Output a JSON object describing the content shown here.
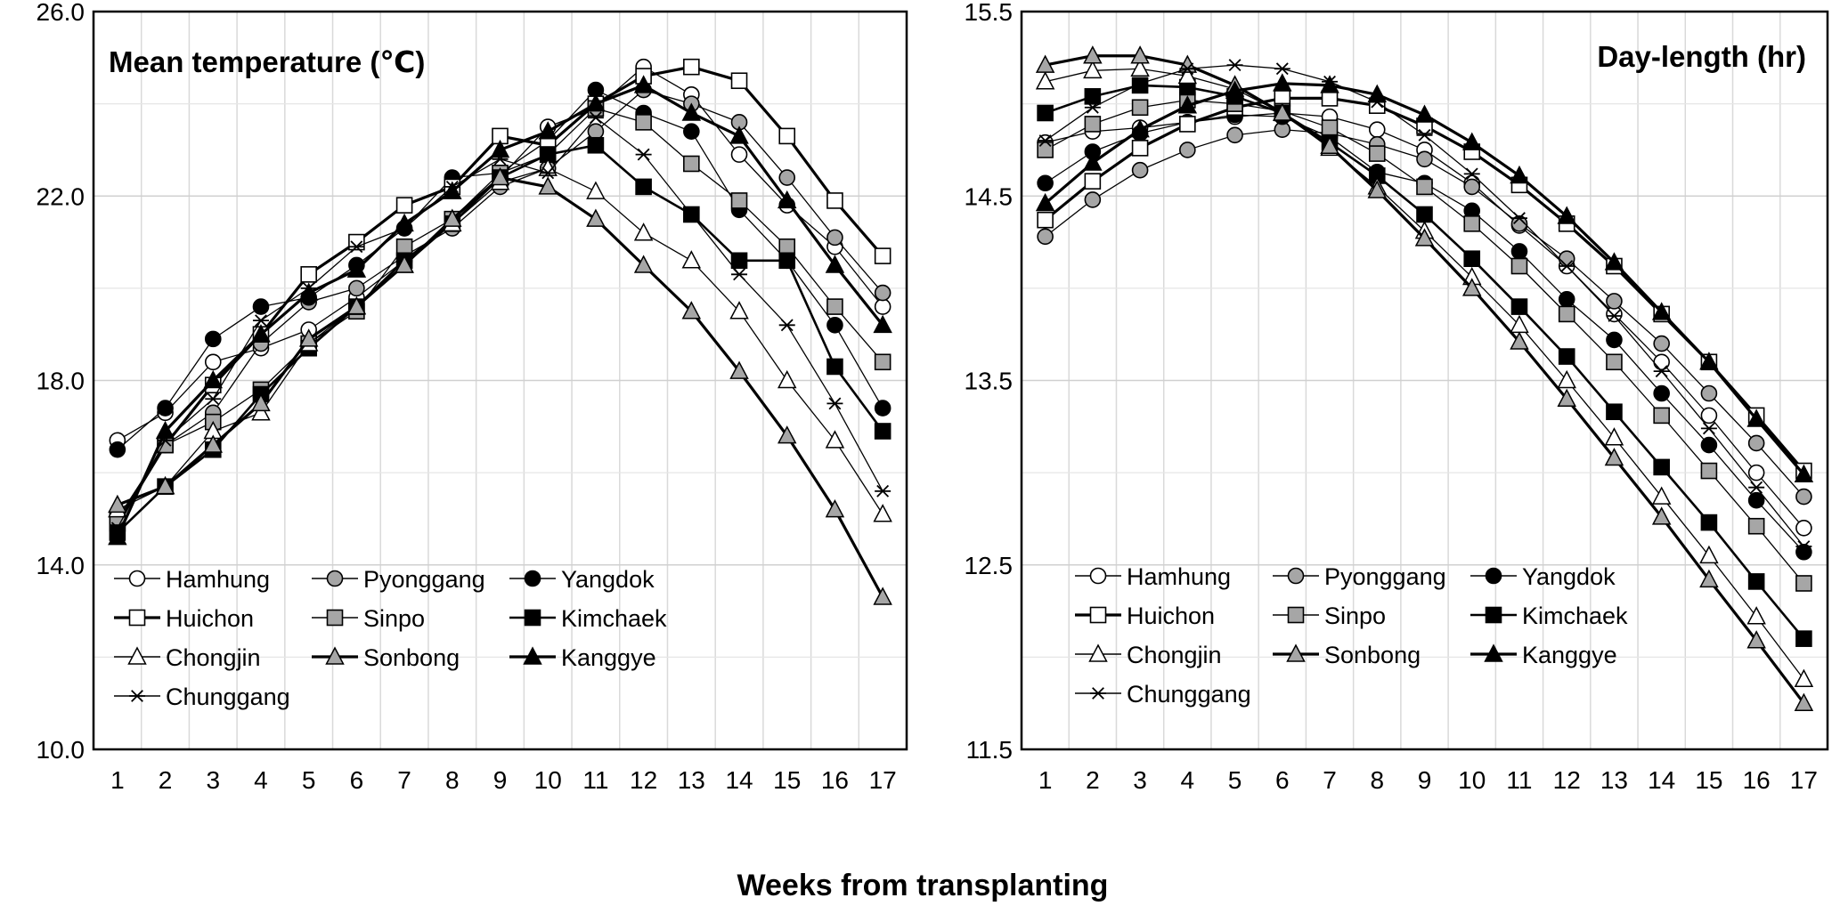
{
  "figure": {
    "xlabel": "Weeks from transplanting"
  },
  "chart_data": [
    {
      "type": "line",
      "title": "Mean temperature (℃)",
      "x": [
        1,
        2,
        3,
        4,
        5,
        6,
        7,
        8,
        9,
        10,
        11,
        12,
        13,
        14,
        15,
        16,
        17
      ],
      "x_tick_labels": [
        "1",
        "2",
        "3",
        "4",
        "5",
        "6",
        "7",
        "8",
        "9",
        "10",
        "11",
        "12",
        "13",
        "14",
        "15",
        "16",
        "17"
      ],
      "ylim": [
        10.0,
        26.0
      ],
      "y_ticks": [
        10.0,
        14.0,
        18.0,
        22.0,
        26.0
      ],
      "y_tick_labels": [
        "10.0",
        "14.0",
        "18.0",
        "22.0",
        "26.0"
      ],
      "grid": true,
      "legend_position": "bottom-left",
      "series": [
        {
          "name": "Hamhung",
          "marker": "circle-open",
          "values": [
            16.7,
            17.3,
            18.4,
            18.7,
            19.1,
            19.8,
            20.6,
            21.4,
            22.4,
            23.5,
            23.9,
            24.8,
            24.2,
            22.9,
            21.8,
            20.9,
            19.6
          ]
        },
        {
          "name": "Pyonggang",
          "marker": "circle-gray",
          "values": [
            15.0,
            16.6,
            17.3,
            18.8,
            19.7,
            20.0,
            20.7,
            21.3,
            22.2,
            22.6,
            23.4,
            24.3,
            24.0,
            23.6,
            22.4,
            21.1,
            19.9
          ]
        },
        {
          "name": "Yangdok",
          "marker": "circle-filled",
          "values": [
            16.5,
            17.4,
            18.9,
            19.6,
            19.8,
            20.5,
            21.3,
            22.4,
            22.5,
            23.2,
            24.3,
            23.8,
            23.4,
            21.7,
            20.6,
            19.2,
            17.4
          ]
        },
        {
          "name": "Huichon",
          "marker": "square-open",
          "values": [
            14.9,
            16.6,
            17.9,
            19.0,
            20.3,
            21.0,
            21.8,
            22.2,
            23.3,
            23.1,
            24.0,
            24.6,
            24.8,
            24.5,
            23.3,
            21.9,
            20.7
          ]
        },
        {
          "name": "Sinpo",
          "marker": "square-gray",
          "values": [
            15.0,
            16.6,
            17.1,
            17.8,
            18.8,
            19.5,
            20.9,
            21.5,
            22.5,
            22.9,
            23.9,
            23.6,
            22.7,
            21.9,
            20.9,
            19.6,
            18.4
          ]
        },
        {
          "name": "Kimchaek",
          "marker": "square-filled",
          "values": [
            14.7,
            15.7,
            16.5,
            17.7,
            18.7,
            19.6,
            20.6,
            21.4,
            22.4,
            22.9,
            23.1,
            22.2,
            21.6,
            20.6,
            20.6,
            18.3,
            16.9
          ]
        },
        {
          "name": "Chongjin",
          "marker": "triangle-open",
          "values": [
            15.2,
            15.7,
            16.9,
            17.3,
            18.8,
            19.6,
            20.5,
            21.4,
            22.3,
            22.6,
            22.1,
            21.2,
            20.6,
            19.5,
            18.0,
            16.7,
            15.1
          ]
        },
        {
          "name": "Sonbong",
          "marker": "triangle-gray",
          "values": [
            15.3,
            15.7,
            16.6,
            17.5,
            18.9,
            19.6,
            20.5,
            21.5,
            22.4,
            22.2,
            21.5,
            20.5,
            19.5,
            18.2,
            16.8,
            15.2,
            13.3
          ]
        },
        {
          "name": "Kanggye",
          "marker": "triangle-filled",
          "values": [
            14.6,
            16.9,
            18.0,
            19.0,
            19.9,
            20.4,
            21.4,
            22.1,
            23.0,
            23.4,
            24.0,
            24.4,
            23.8,
            23.3,
            21.9,
            20.5,
            19.2
          ]
        },
        {
          "name": "Chunggang",
          "marker": "star",
          "values": [
            14.8,
            16.7,
            17.6,
            19.3,
            20.0,
            20.9,
            21.3,
            22.2,
            22.8,
            22.5,
            23.7,
            22.9,
            21.6,
            20.3,
            19.2,
            17.5,
            15.6
          ]
        }
      ]
    },
    {
      "type": "line",
      "title": "Day-length (hr)",
      "x": [
        1,
        2,
        3,
        4,
        5,
        6,
        7,
        8,
        9,
        10,
        11,
        12,
        13,
        14,
        15,
        16,
        17
      ],
      "x_tick_labels": [
        "1",
        "2",
        "3",
        "4",
        "5",
        "6",
        "7",
        "8",
        "9",
        "10",
        "11",
        "12",
        "13",
        "14",
        "15",
        "16",
        "17"
      ],
      "ylim": [
        11.5,
        15.5
      ],
      "y_ticks": [
        11.5,
        12.5,
        13.5,
        14.5,
        15.5
      ],
      "y_tick_labels": [
        "11.5",
        "12.5",
        "13.5",
        "14.5",
        "15.5"
      ],
      "grid": true,
      "legend_position": "bottom-left",
      "series": [
        {
          "name": "Hamhung",
          "marker": "circle-open",
          "values": [
            14.79,
            14.85,
            14.87,
            14.9,
            14.93,
            14.95,
            14.93,
            14.86,
            14.75,
            14.57,
            14.34,
            14.12,
            13.86,
            13.6,
            13.31,
            13.0,
            12.7
          ]
        },
        {
          "name": "Pyonggang",
          "marker": "circle-gray",
          "values": [
            14.28,
            14.48,
            14.64,
            14.75,
            14.83,
            14.86,
            14.84,
            14.78,
            14.7,
            14.55,
            14.35,
            14.16,
            13.93,
            13.7,
            13.43,
            13.16,
            12.87
          ]
        },
        {
          "name": "Yangdok",
          "marker": "circle-filled",
          "values": [
            14.57,
            14.74,
            14.84,
            14.9,
            14.94,
            14.93,
            14.82,
            14.63,
            14.57,
            14.42,
            14.2,
            13.94,
            13.72,
            13.43,
            13.15,
            12.85,
            12.57
          ]
        },
        {
          "name": "Huichon",
          "marker": "square-open",
          "values": [
            14.37,
            14.58,
            14.76,
            14.89,
            14.98,
            15.03,
            15.03,
            14.99,
            14.88,
            14.74,
            14.56,
            14.35,
            14.12,
            13.86,
            13.6,
            13.31,
            13.01
          ]
        },
        {
          "name": "Sinpo",
          "marker": "square-gray",
          "values": [
            14.75,
            14.89,
            14.98,
            15.02,
            15.0,
            14.96,
            14.87,
            14.73,
            14.55,
            14.35,
            14.12,
            13.86,
            13.6,
            13.31,
            13.01,
            12.71,
            12.4
          ]
        },
        {
          "name": "Kimchaek",
          "marker": "square-filled",
          "values": [
            14.95,
            15.04,
            15.1,
            15.09,
            15.04,
            14.95,
            14.79,
            14.61,
            14.4,
            14.16,
            13.9,
            13.63,
            13.33,
            13.03,
            12.73,
            12.41,
            12.1
          ]
        },
        {
          "name": "Chongjin",
          "marker": "triangle-open",
          "values": [
            15.12,
            15.18,
            15.19,
            15.15,
            15.08,
            14.95,
            14.76,
            14.55,
            14.31,
            14.06,
            13.8,
            13.5,
            13.19,
            12.87,
            12.55,
            12.22,
            11.88
          ]
        },
        {
          "name": "Sonbong",
          "marker": "triangle-gray",
          "values": [
            15.21,
            15.26,
            15.26,
            15.21,
            15.1,
            14.95,
            14.77,
            14.53,
            14.27,
            14.0,
            13.71,
            13.4,
            13.08,
            12.76,
            12.42,
            12.09,
            11.75
          ]
        },
        {
          "name": "Kanggye",
          "marker": "triangle-filled",
          "values": [
            14.46,
            14.68,
            14.86,
            14.99,
            15.07,
            15.11,
            15.1,
            15.05,
            14.94,
            14.79,
            14.61,
            14.39,
            14.14,
            13.87,
            13.6,
            13.29,
            12.99
          ]
        },
        {
          "name": "Chunggang",
          "marker": "star",
          "values": [
            14.8,
            14.98,
            15.11,
            15.19,
            15.21,
            15.19,
            15.12,
            15.01,
            14.83,
            14.62,
            14.38,
            14.12,
            13.85,
            13.55,
            13.24,
            12.92,
            12.6
          ]
        }
      ]
    }
  ]
}
